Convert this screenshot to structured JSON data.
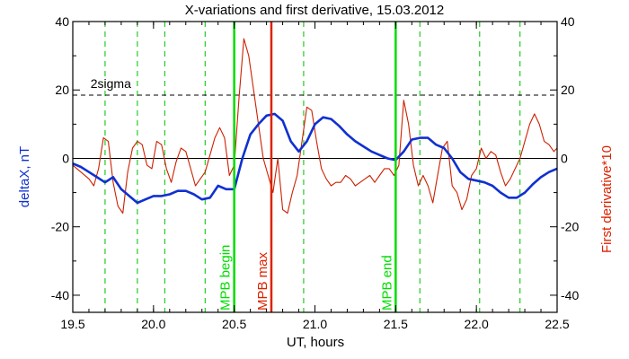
{
  "chart_data": {
    "type": "line",
    "title": "X-variations and first derivative, 15.03.2012",
    "xlabel": "UT, hours",
    "ylabel_left": "deltaX, nT",
    "ylabel_right": "First derivative*10",
    "xlim": [
      19.5,
      22.5
    ],
    "ylim": [
      -45,
      40
    ],
    "x_ticks": [
      "19.5",
      "20.0",
      "20.5",
      "21.0",
      "21.5",
      "22.0",
      "22.5"
    ],
    "y_ticks_left": [
      "-40",
      "-20",
      "0",
      "20",
      "40"
    ],
    "y_ticks_right": [
      "-40",
      "-20",
      "0",
      "20",
      "40"
    ],
    "threshold": {
      "label": "2sigma",
      "y": 18.5
    },
    "zero_line": 0,
    "vlines_dashed": [
      19.7,
      19.9,
      20.07,
      20.32,
      20.93,
      21.65,
      22.02,
      22.27
    ],
    "markers": [
      {
        "label": "MPB begin",
        "x": 20.5,
        "color": "#00dd00"
      },
      {
        "label": "MPB max",
        "x": 20.73,
        "color": "#dd2200"
      },
      {
        "label": "MPB end",
        "x": 21.5,
        "color": "#00dd00"
      }
    ],
    "series": [
      {
        "name": "deltaX, nT",
        "color": "#1030d0",
        "x": [
          19.5,
          19.55,
          19.6,
          19.65,
          19.7,
          19.75,
          19.8,
          19.85,
          19.9,
          19.95,
          20.0,
          20.05,
          20.1,
          20.15,
          20.2,
          20.25,
          20.3,
          20.35,
          20.4,
          20.45,
          20.5,
          20.55,
          20.6,
          20.65,
          20.7,
          20.75,
          20.8,
          20.85,
          20.9,
          20.95,
          21.0,
          21.05,
          21.1,
          21.15,
          21.2,
          21.25,
          21.3,
          21.35,
          21.4,
          21.45,
          21.5,
          21.55,
          21.6,
          21.65,
          21.7,
          21.75,
          21.8,
          21.85,
          21.9,
          21.95,
          22.0,
          22.05,
          22.1,
          22.15,
          22.2,
          22.25,
          22.3,
          22.35,
          22.4,
          22.45,
          22.5
        ],
        "values": [
          -1.5,
          -2.5,
          -4,
          -5.5,
          -7,
          -5.5,
          -9,
          -11,
          -13,
          -12,
          -11,
          -11,
          -10.5,
          -9.5,
          -9.5,
          -10.5,
          -12,
          -11.5,
          -8,
          -9,
          -9,
          0,
          7,
          10,
          12.5,
          13,
          11,
          5,
          2,
          5,
          10,
          12,
          11.5,
          9.5,
          7,
          5,
          3.5,
          2,
          1,
          0,
          -0.5,
          2,
          5.5,
          6,
          6,
          4,
          3,
          0,
          -4,
          -6,
          -6.5,
          -7,
          -8,
          -10,
          -11.5,
          -11.5,
          -10,
          -7.5,
          -5.5,
          -4,
          -3
        ]
      },
      {
        "name": "First derivative*10",
        "color": "#cc2000",
        "x": [
          19.5,
          19.55,
          19.6,
          19.63,
          19.66,
          19.69,
          19.72,
          19.75,
          19.78,
          19.81,
          19.84,
          19.87,
          19.9,
          19.93,
          19.96,
          19.99,
          20.02,
          20.05,
          20.08,
          20.11,
          20.14,
          20.17,
          20.2,
          20.23,
          20.26,
          20.29,
          20.32,
          20.35,
          20.38,
          20.41,
          20.44,
          20.47,
          20.5,
          20.53,
          20.56,
          20.59,
          20.62,
          20.65,
          20.68,
          20.71,
          20.74,
          20.77,
          20.8,
          20.83,
          20.86,
          20.89,
          20.92,
          20.95,
          20.98,
          21.01,
          21.04,
          21.07,
          21.1,
          21.13,
          21.16,
          21.19,
          21.22,
          21.25,
          21.28,
          21.31,
          21.34,
          21.37,
          21.4,
          21.43,
          21.46,
          21.49,
          21.52,
          21.55,
          21.58,
          21.61,
          21.64,
          21.67,
          21.7,
          21.73,
          21.76,
          21.79,
          21.82,
          21.85,
          21.88,
          21.91,
          21.94,
          21.97,
          22.0,
          22.03,
          22.06,
          22.09,
          22.12,
          22.15,
          22.18,
          22.21,
          22.24,
          22.27,
          22.3,
          22.33,
          22.36,
          22.39,
          22.42,
          22.45,
          22.48,
          22.5
        ],
        "values": [
          -2,
          -4,
          -6,
          -8,
          -3,
          6,
          5,
          -7,
          -14,
          -16,
          -4,
          3,
          5,
          4,
          -2,
          -3,
          5,
          4,
          -3,
          -7,
          -1,
          3,
          2,
          -3,
          -8,
          -6,
          -4,
          1,
          6,
          9,
          6,
          -5,
          -2,
          18,
          35,
          30,
          20,
          10,
          0,
          -5,
          -10,
          0,
          -15,
          -16,
          -10,
          -5,
          5,
          15,
          14,
          5,
          -3,
          -6,
          -8,
          -7,
          -7,
          -5,
          -6,
          -8,
          -7,
          -6,
          -5,
          -7,
          -5,
          -3,
          -3,
          -5,
          -2,
          17,
          10,
          -2,
          -8,
          -5,
          -8,
          -13,
          -5,
          3,
          5,
          -8,
          -10,
          -15,
          -12,
          -5,
          -3,
          3,
          0,
          2,
          1,
          -4,
          -8,
          -6,
          -3,
          0,
          5,
          10,
          13,
          10,
          5,
          4,
          2,
          3
        ]
      }
    ]
  }
}
